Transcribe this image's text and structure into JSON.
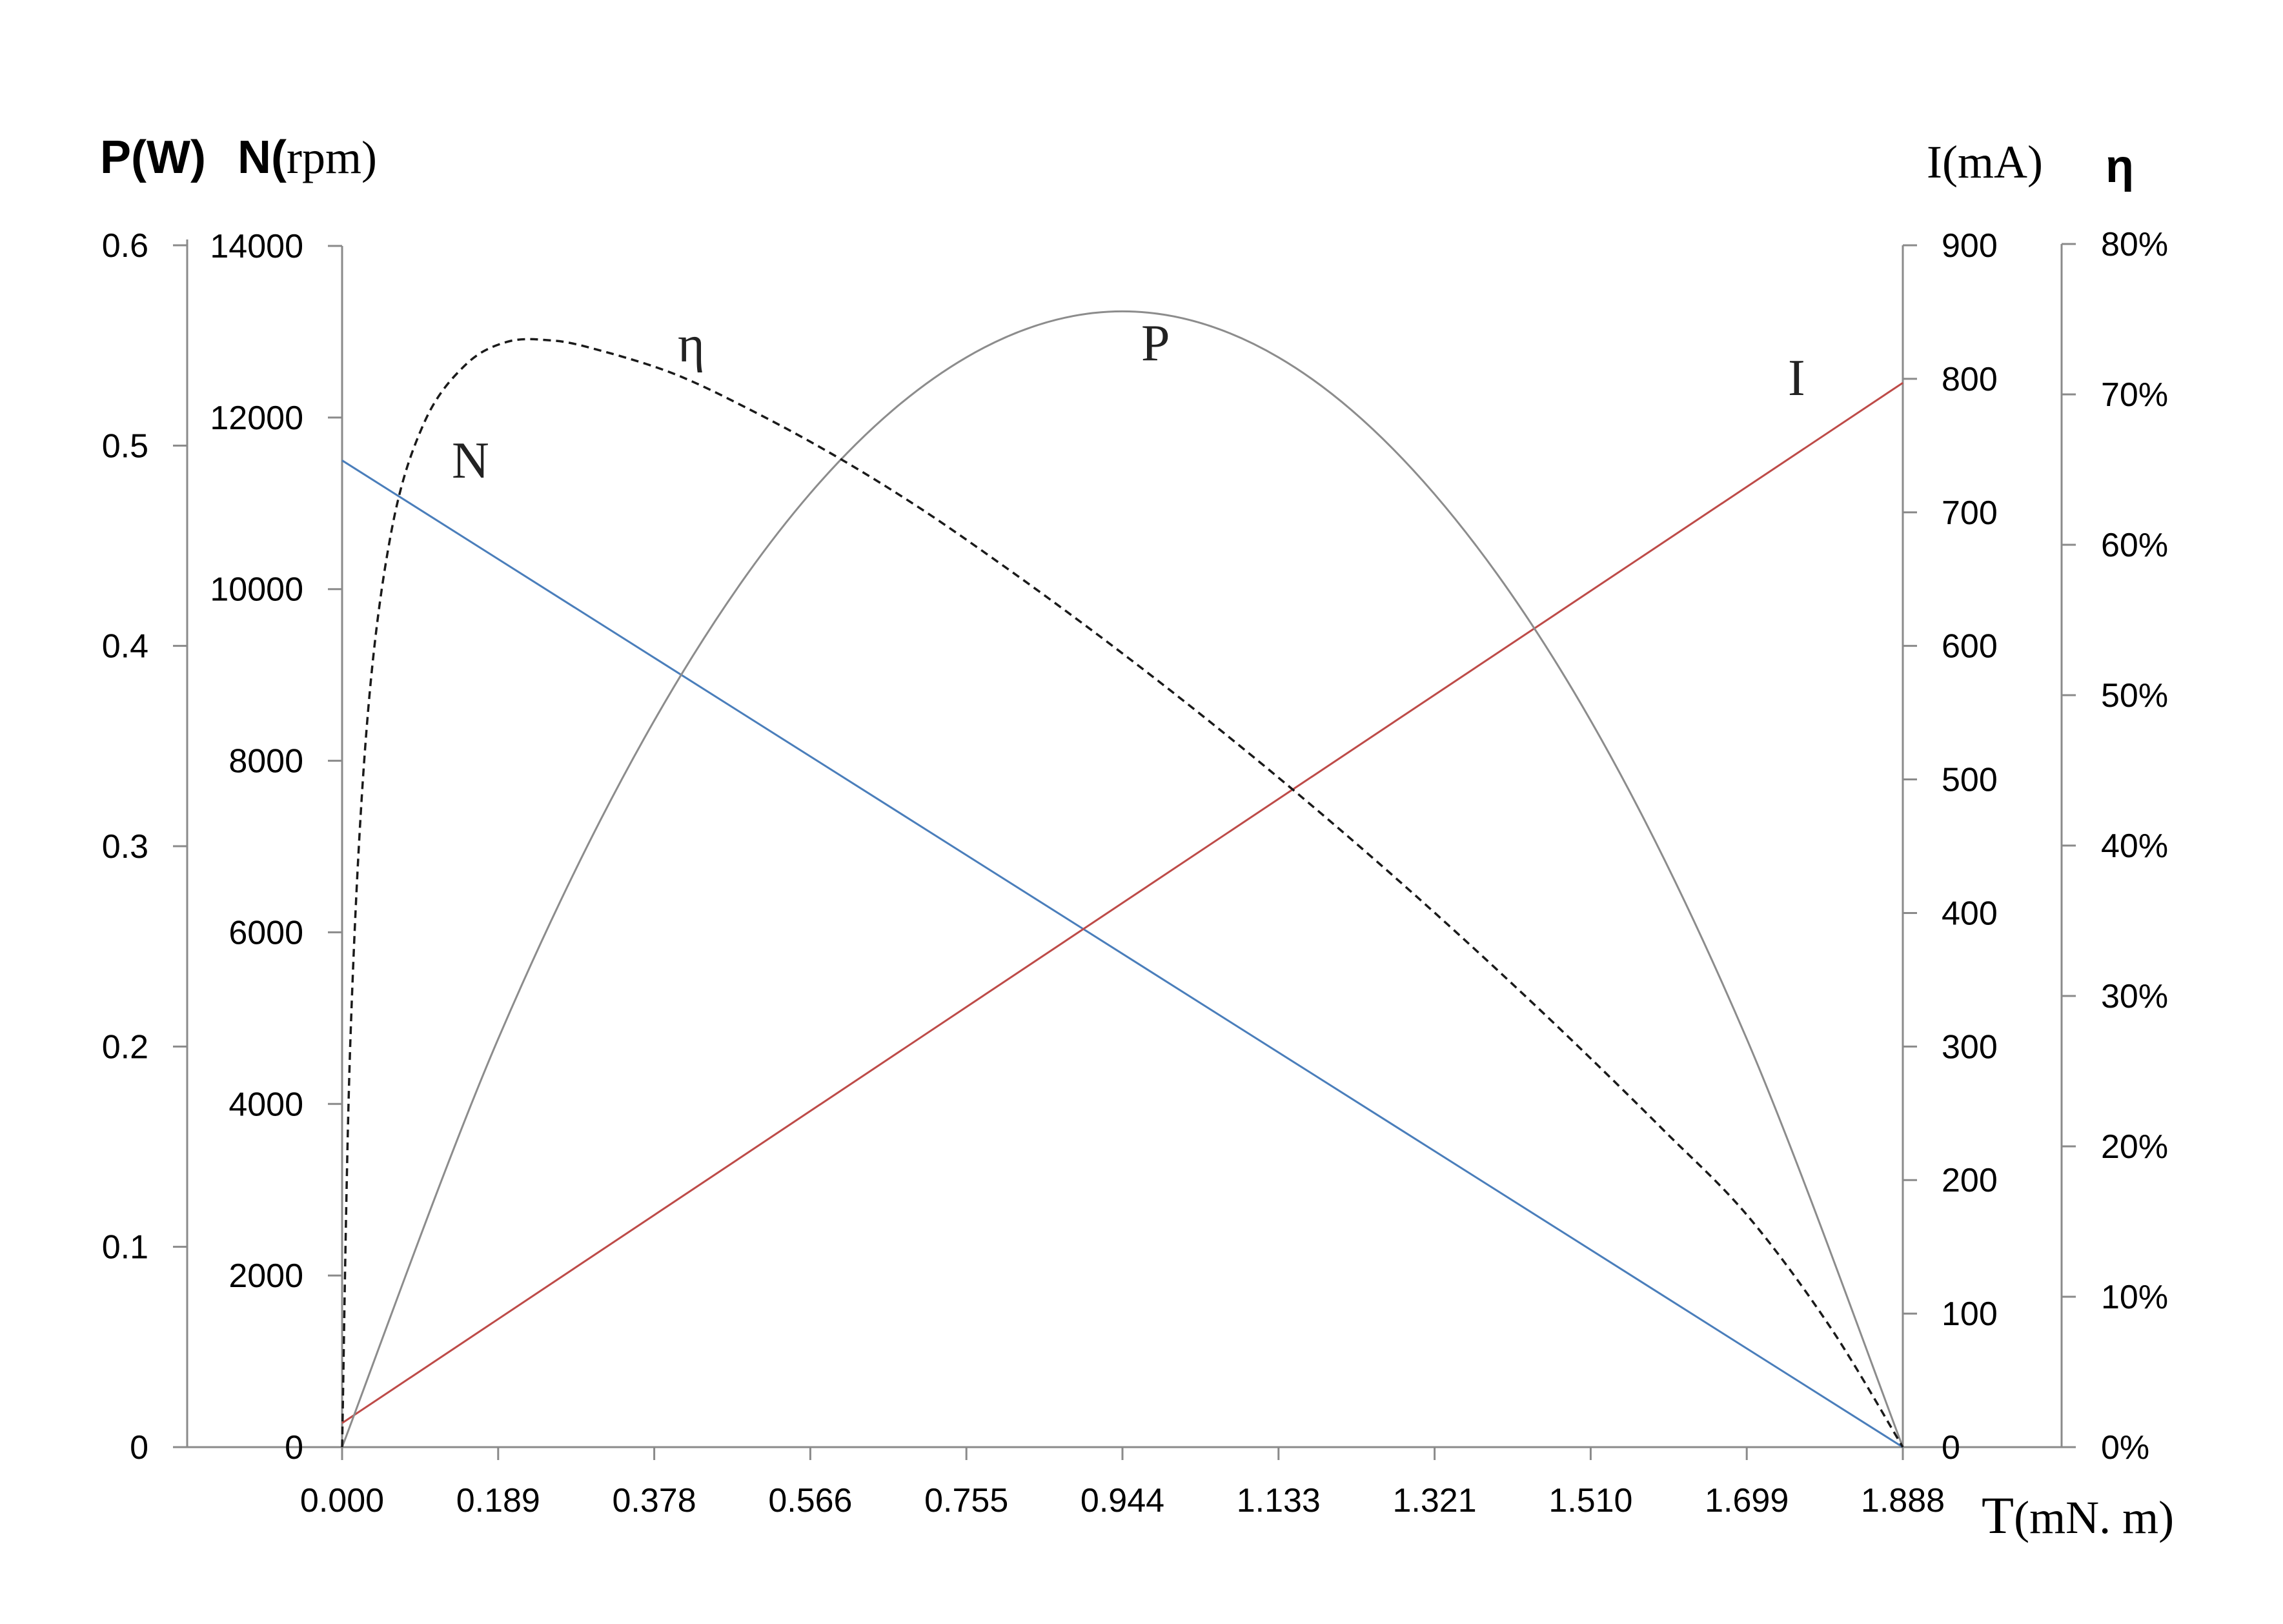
{
  "chart_data": {
    "type": "line",
    "x_axis": {
      "ticks": [
        "0.000",
        "0.189",
        "0.378",
        "0.566",
        "0.755",
        "0.944",
        "1.133",
        "1.321",
        "1.510",
        "1.699",
        "1.888"
      ],
      "label_letter": "T",
      "label_unit": "(mN. m)",
      "range": [
        0,
        1.888
      ]
    },
    "axis_labels": {
      "P_axis": "P(W)",
      "N_axis_symbol": "N(",
      "N_axis_unit": "rpm)",
      "I_axis": "I(mA)",
      "eta_axis": "η"
    },
    "y_axes": {
      "P": {
        "ticks": [
          "0",
          "0.1",
          "0.2",
          "0.3",
          "0.4",
          "0.5",
          "0.6"
        ],
        "range": [
          0,
          0.6
        ]
      },
      "N": {
        "ticks": [
          "0",
          "2000",
          "4000",
          "6000",
          "8000",
          "10000",
          "12000",
          "14000"
        ],
        "range": [
          0,
          14000
        ]
      },
      "I": {
        "ticks": [
          "0",
          "100",
          "200",
          "300",
          "400",
          "500",
          "600",
          "700",
          "800",
          "900"
        ],
        "range": [
          0,
          900
        ]
      },
      "eta": {
        "ticks": [
          "0%",
          "10%",
          "20%",
          "30%",
          "40%",
          "50%",
          "60%",
          "70%",
          "80%"
        ],
        "range": [
          0,
          0.8
        ]
      }
    },
    "series": [
      {
        "name": "N",
        "axis": "N",
        "color": "#4a7ebb",
        "dash": false,
        "x": [
          0,
          1.888
        ],
        "values": [
          11500,
          0
        ]
      },
      {
        "name": "I",
        "axis": "I",
        "color": "#be4b48",
        "dash": false,
        "x": [
          0,
          1.888
        ],
        "values": [
          18,
          797
        ]
      },
      {
        "name": "P",
        "axis": "P",
        "color": "#8c8c8c",
        "dash": false,
        "x": [
          0,
          0.189,
          0.378,
          0.566,
          0.755,
          0.944,
          1.133,
          1.321,
          1.51,
          1.699,
          1.888
        ],
        "values": [
          0,
          0.204,
          0.363,
          0.476,
          0.544,
          0.567,
          0.544,
          0.476,
          0.363,
          0.204,
          0
        ]
      },
      {
        "name": "η",
        "axis": "eta",
        "color": "#1a1a1a",
        "dash": true,
        "x": [
          0,
          0.01,
          0.03,
          0.06,
          0.1,
          0.15,
          0.2,
          0.25,
          0.3,
          0.4,
          0.5,
          0.6,
          0.7,
          0.8,
          0.9,
          1.0,
          1.1,
          1.2,
          1.3,
          1.4,
          1.5,
          1.6,
          1.7,
          1.8,
          1.888
        ],
        "values": [
          0,
          0.27,
          0.48,
          0.61,
          0.682,
          0.72,
          0.735,
          0.736,
          0.731,
          0.714,
          0.688,
          0.658,
          0.624,
          0.586,
          0.546,
          0.504,
          0.46,
          0.414,
          0.366,
          0.316,
          0.264,
          0.21,
          0.154,
          0.08,
          0
        ]
      }
    ],
    "curve_labels": [
      "N",
      "η",
      "P",
      "I"
    ],
    "grid": false,
    "legend": "none"
  }
}
